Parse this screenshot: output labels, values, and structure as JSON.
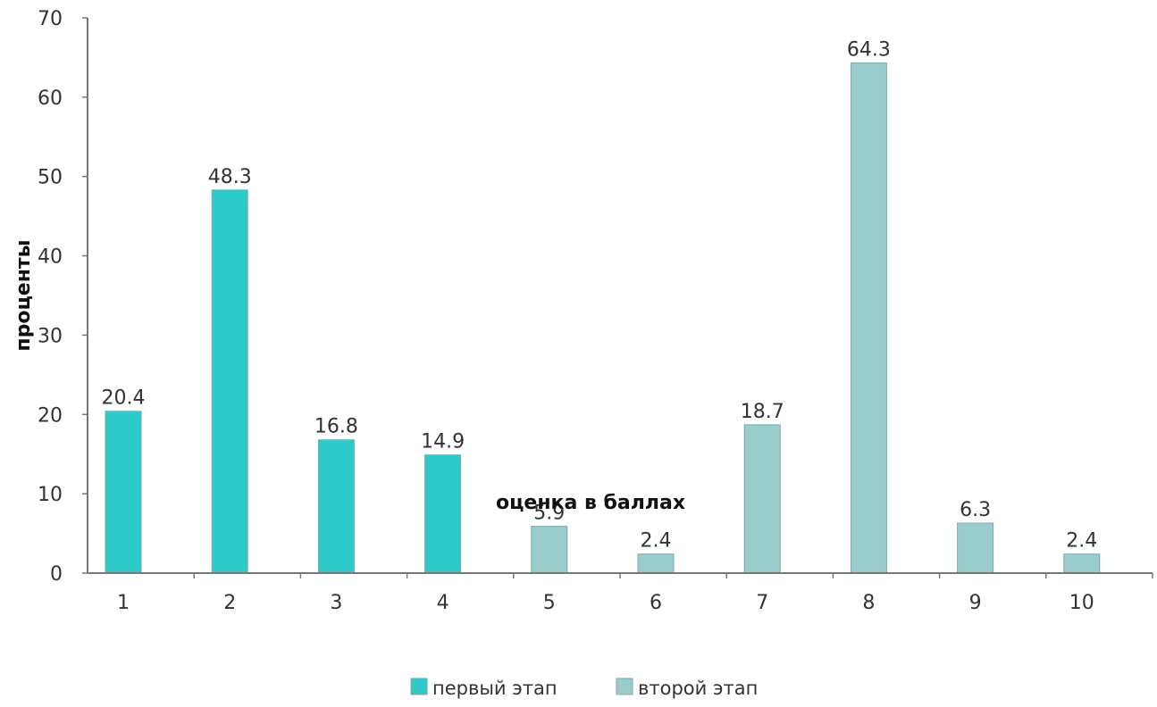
{
  "chart_data": {
    "type": "bar",
    "categories": [
      "1",
      "2",
      "3",
      "4",
      "5",
      "6",
      "7",
      "8",
      "9",
      "10"
    ],
    "series": [
      {
        "name": "первый этап",
        "color": "#2ec9c9",
        "values": [
          20.4,
          48.3,
          16.8,
          14.9,
          null,
          null,
          null,
          null,
          null,
          null
        ]
      },
      {
        "name": "второй этап",
        "color": "#9bcccc",
        "values": [
          null,
          null,
          null,
          null,
          5.9,
          2.4,
          18.7,
          64.3,
          6.3,
          2.4
        ]
      }
    ],
    "value_labels": [
      "20.4",
      "48.3",
      "16.8",
      "14.9",
      "5.9",
      "2.4",
      "18.7",
      "64.3",
      "6.3",
      "2.4"
    ],
    "yticks": [
      "0",
      "10",
      "20",
      "30",
      "40",
      "50",
      "60",
      "70"
    ],
    "xlabel": "оценка в баллах",
    "ylabel": "проценты",
    "ylim": [
      0,
      70
    ],
    "grid": false,
    "legend_position": "bottom"
  }
}
